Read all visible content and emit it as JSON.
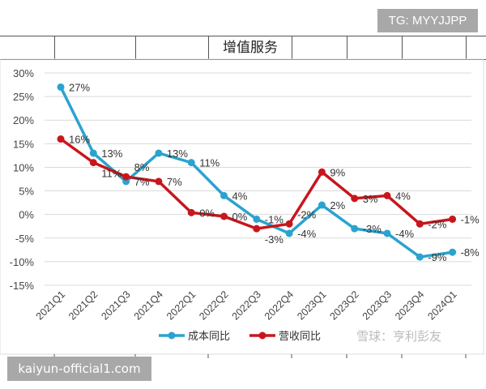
{
  "watermark_top": "TG: MYYJJPP",
  "watermark_bottom": "kaiyun-official1.com",
  "watermark_xueqiu": "雪球：亨利彭友",
  "header": {
    "title": "增值服务"
  },
  "chart_data": {
    "type": "line",
    "title": "增值服务",
    "categories": [
      "2021Q1",
      "2021Q2",
      "2021Q3",
      "2021Q4",
      "2022Q1",
      "2022Q2",
      "2022Q3",
      "2022Q4",
      "2023Q1",
      "2023Q2",
      "2023Q3",
      "2023Q4",
      "2024Q1"
    ],
    "ylim": [
      -15,
      30
    ],
    "yticks": [
      "30%",
      "25%",
      "20%",
      "15%",
      "10%",
      "5%",
      "0%",
      "-5%",
      "-10%",
      "-15%"
    ],
    "ytick_values": [
      30,
      25,
      20,
      15,
      10,
      5,
      0,
      -5,
      -10,
      -15
    ],
    "grid": true,
    "legend_placement": "bottom",
    "series": [
      {
        "name": "成本同比",
        "color": "#2aa3cf",
        "values": [
          27,
          13,
          7,
          13,
          11,
          4,
          -1,
          -4,
          2,
          -3,
          -4,
          -9,
          -8
        ],
        "labels": [
          "27%",
          "13%",
          "7%",
          "13%",
          "11%",
          "4%",
          "-1%",
          "-4%",
          "2%",
          "-3%",
          "-4%",
          "-9%",
          "-8%"
        ]
      },
      {
        "name": "营收同比",
        "color": "#c8161d",
        "values": [
          16,
          11,
          8,
          7,
          0.4,
          -0.4,
          -3,
          -2,
          9,
          3.4,
          4,
          -2,
          -1
        ],
        "labels": [
          "16%",
          "11%",
          "8%",
          "7%",
          "0%",
          "0%",
          "-3%",
          "-2%",
          "9%",
          "3%",
          "4%",
          "-2%",
          "-1%"
        ]
      }
    ]
  }
}
